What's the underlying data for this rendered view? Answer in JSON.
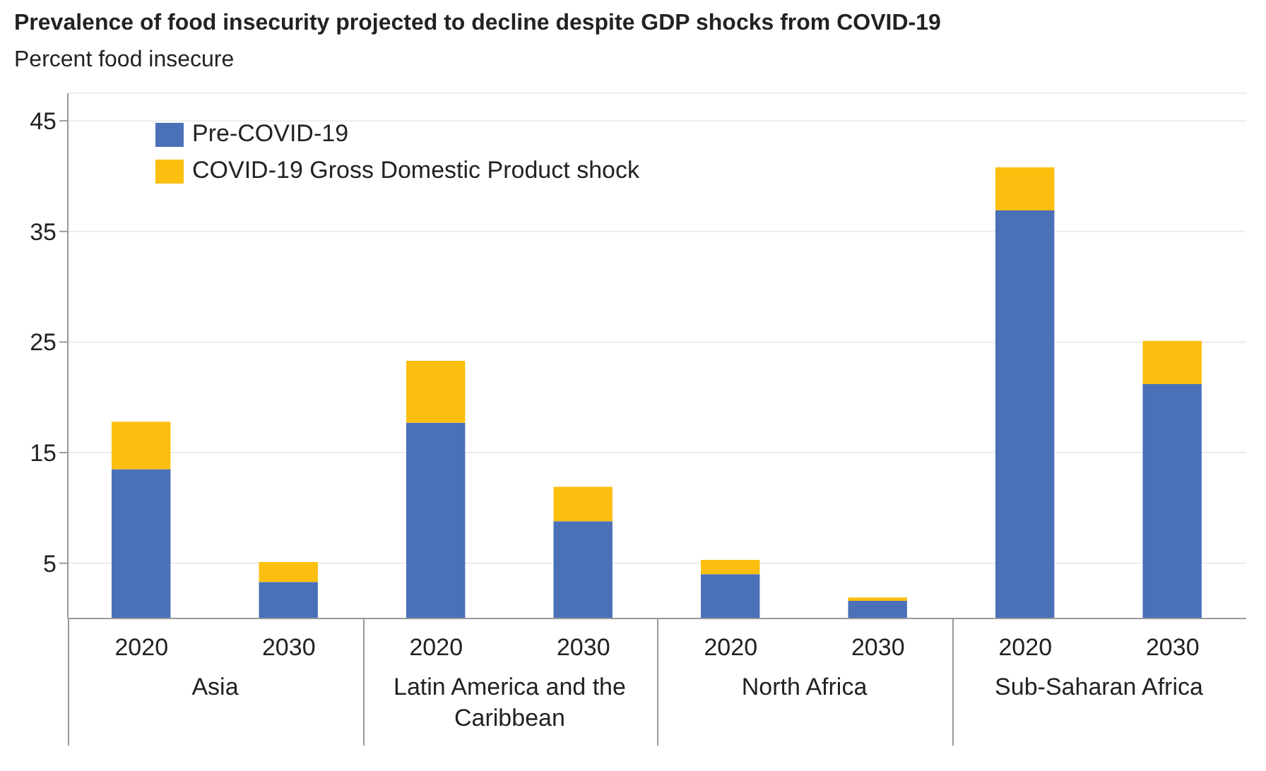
{
  "chart_data": {
    "type": "bar",
    "title": "Prevalence of food insecurity projected to decline despite GDP shocks from COVID-19",
    "ylabel": "Percent food insecure",
    "categories": [
      "2020",
      "2030",
      "2020",
      "2030",
      "2020",
      "2030",
      "2020",
      "2030"
    ],
    "annotations": [
      "Asia",
      "Latin America and the Caribbean",
      "North Africa",
      "Sub-Saharan Africa"
    ],
    "series": [
      {
        "name": "Pre-COVID-19",
        "color": "#4a70b8",
        "values": [
          13.5,
          3.3,
          17.7,
          8.8,
          4.0,
          1.6,
          36.9,
          21.2
        ]
      },
      {
        "name": "COVID-19 Gross Domestic Product shock",
        "color": "#fcbf0f",
        "values": [
          4.3,
          1.8,
          5.6,
          3.1,
          1.3,
          0.3,
          3.9,
          3.9
        ]
      }
    ],
    "stacked": true,
    "ylim": [
      0,
      47.5
    ],
    "yticks": [
      5,
      15,
      25,
      35,
      45
    ],
    "grid": "y",
    "legend": "top left"
  }
}
